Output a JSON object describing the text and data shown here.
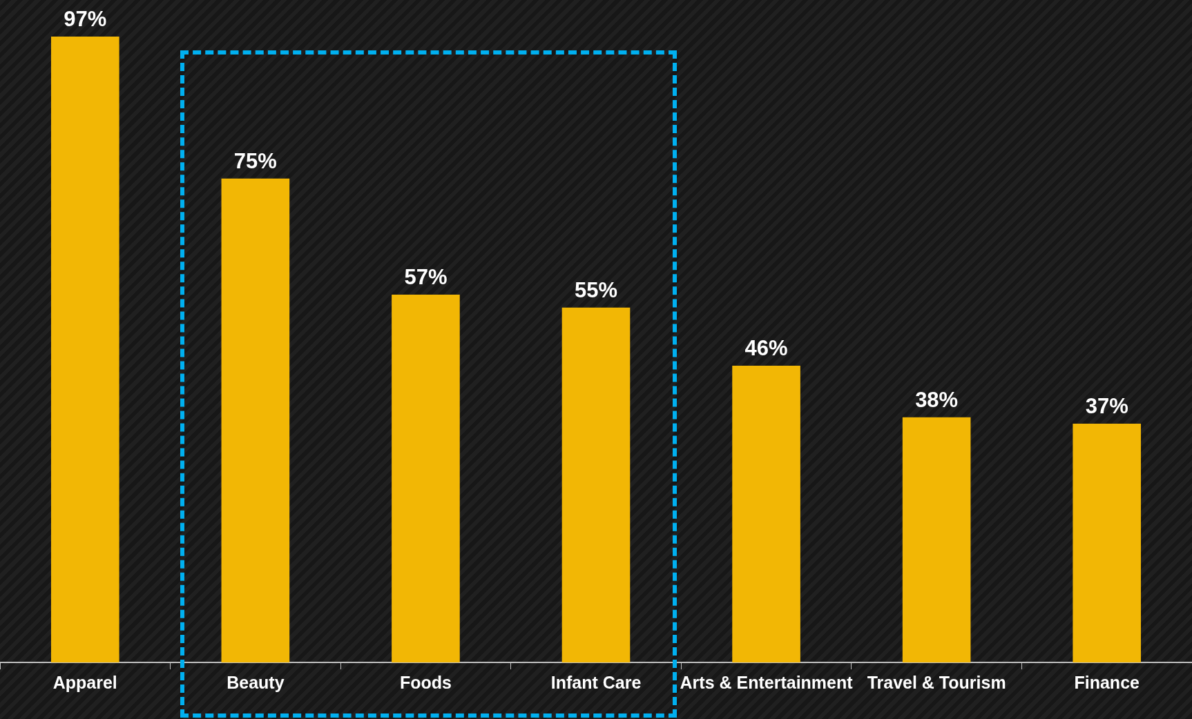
{
  "chart_data": {
    "type": "bar",
    "categories": [
      "Apparel",
      "Beauty",
      "Foods",
      "Infant Care",
      "Arts & Entertainment",
      "Travel & Tourism",
      "Finance"
    ],
    "values": [
      97,
      75,
      57,
      55,
      46,
      38,
      37
    ],
    "value_labels": [
      "97%",
      "75%",
      "57%",
      "55%",
      "46%",
      "38%",
      "37%"
    ],
    "color": "#f2b705",
    "grid": false,
    "legend": false
  }
}
